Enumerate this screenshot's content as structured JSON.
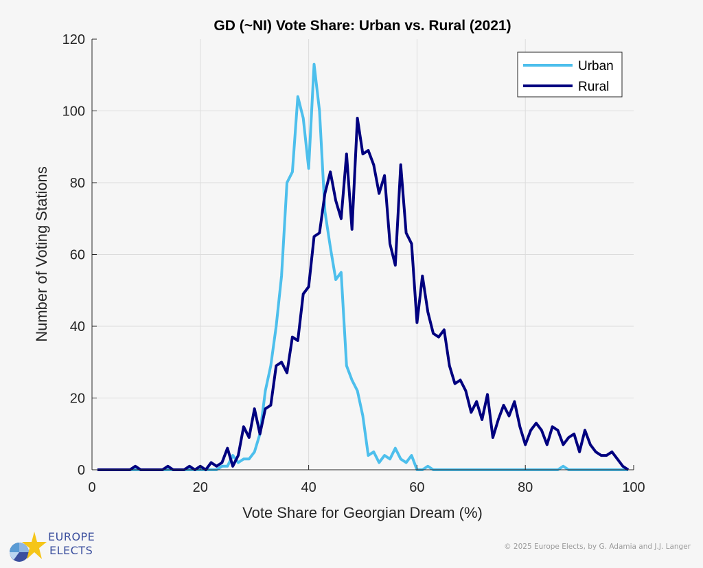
{
  "chart_data": {
    "type": "line",
    "title": "GD (~NI) Vote Share: Urban vs. Rural (2021)",
    "xlabel": "Vote Share for Georgian Dream (%)",
    "ylabel": "Number of Voting Stations",
    "xlim": [
      0,
      100
    ],
    "ylim": [
      0,
      120
    ],
    "xticks": [
      0,
      20,
      40,
      60,
      80,
      100
    ],
    "yticks": [
      0,
      20,
      40,
      60,
      80,
      100,
      120
    ],
    "grid": true,
    "legend_position": "top-right",
    "x": [
      1,
      2,
      3,
      4,
      5,
      6,
      7,
      8,
      9,
      10,
      11,
      12,
      13,
      14,
      15,
      16,
      17,
      18,
      19,
      20,
      21,
      22,
      23,
      24,
      25,
      26,
      27,
      28,
      29,
      30,
      31,
      32,
      33,
      34,
      35,
      36,
      37,
      38,
      39,
      40,
      41,
      42,
      43,
      44,
      45,
      46,
      47,
      48,
      49,
      50,
      51,
      52,
      53,
      54,
      55,
      56,
      57,
      58,
      59,
      60,
      61,
      62,
      63,
      64,
      65,
      66,
      67,
      68,
      69,
      70,
      71,
      72,
      73,
      74,
      75,
      76,
      77,
      78,
      79,
      80,
      81,
      82,
      83,
      84,
      85,
      86,
      87,
      88,
      89,
      90,
      91,
      92,
      93,
      94,
      95,
      96,
      97,
      98,
      99
    ],
    "series": [
      {
        "name": "Urban",
        "color": "#4dbfec",
        "values": [
          0,
          0,
          0,
          0,
          0,
          0,
          0,
          0,
          0,
          0,
          0,
          0,
          0,
          0,
          0,
          0,
          0,
          0,
          0,
          0,
          0,
          0,
          0,
          1,
          1,
          4,
          2,
          3,
          3,
          5,
          10,
          22,
          29,
          40,
          54,
          80,
          83,
          104,
          98,
          84,
          113,
          100,
          72,
          62,
          53,
          55,
          29,
          25,
          22,
          15,
          4,
          5,
          2,
          4,
          3,
          6,
          3,
          2,
          4,
          0,
          0,
          1,
          0,
          0,
          0,
          0,
          0,
          0,
          0,
          0,
          0,
          0,
          0,
          0,
          0,
          0,
          0,
          0,
          0,
          0,
          0,
          0,
          0,
          0,
          0,
          0,
          1,
          0,
          0,
          0,
          0,
          0,
          0,
          0,
          0,
          0,
          0,
          0,
          0
        ]
      },
      {
        "name": "Rural",
        "color": "#00007f",
        "values": [
          0,
          0,
          0,
          0,
          0,
          0,
          0,
          1,
          0,
          0,
          0,
          0,
          0,
          1,
          0,
          0,
          0,
          1,
          0,
          1,
          0,
          2,
          1,
          2,
          6,
          1,
          4,
          12,
          9,
          17,
          10,
          17,
          18,
          29,
          30,
          27,
          37,
          36,
          49,
          51,
          65,
          66,
          77,
          83,
          75,
          70,
          88,
          67,
          98,
          88,
          89,
          85,
          77,
          82,
          63,
          57,
          85,
          66,
          63,
          41,
          54,
          44,
          38,
          37,
          39,
          29,
          24,
          25,
          22,
          16,
          19,
          14,
          21,
          9,
          14,
          18,
          15,
          19,
          12,
          7,
          11,
          13,
          11,
          7,
          12,
          11,
          7,
          9,
          10,
          5,
          11,
          7,
          5,
          4,
          4,
          5,
          3,
          1,
          0
        ]
      }
    ]
  },
  "footer": {
    "credit": "© 2025 Europe Elects, by G. Adamia and J.J. Langer"
  },
  "logo": {
    "line1": "EUROPE",
    "line2": "ELECTS"
  }
}
